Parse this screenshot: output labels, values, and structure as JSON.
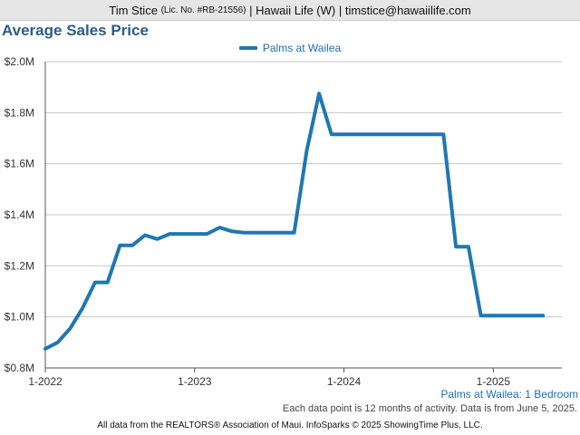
{
  "header": {
    "agent_name": "Tim Stice",
    "license": "(Lic. No. #RB-21556)",
    "company_email": "| Hawaii Life (W) | timstice@hawaiilife.com"
  },
  "colors": {
    "series": "#1f77b4",
    "title": "#2b5c8a",
    "header_bg": "#e6e6e6"
  },
  "chart_data": {
    "type": "line",
    "title": "Average Sales Price",
    "series": [
      {
        "name": "Palms at Wailea",
        "x": [
          "2022-01",
          "2022-02",
          "2022-03",
          "2022-04",
          "2022-05",
          "2022-06",
          "2022-07",
          "2022-08",
          "2022-09",
          "2022-10",
          "2022-11",
          "2022-12",
          "2023-01",
          "2023-02",
          "2023-03",
          "2023-04",
          "2023-05",
          "2023-06",
          "2023-07",
          "2023-08",
          "2023-09",
          "2023-10",
          "2023-11",
          "2023-12",
          "2024-01",
          "2024-02",
          "2024-03",
          "2024-04",
          "2024-05",
          "2024-06",
          "2024-07",
          "2024-08",
          "2024-09",
          "2024-10",
          "2024-11",
          "2024-12",
          "2025-01",
          "2025-02",
          "2025-03",
          "2025-04",
          "2025-05"
        ],
        "values": [
          875000,
          900000,
          955000,
          1035000,
          1135000,
          1135000,
          1280000,
          1280000,
          1320000,
          1305000,
          1325000,
          1325000,
          1325000,
          1325000,
          1350000,
          1335000,
          1330000,
          1330000,
          1330000,
          1330000,
          1330000,
          1650000,
          1875000,
          1715000,
          1715000,
          1715000,
          1715000,
          1715000,
          1715000,
          1715000,
          1715000,
          1715000,
          1715000,
          1275000,
          1275000,
          1005000,
          1005000,
          1005000,
          1005000,
          1005000,
          1005000
        ]
      }
    ],
    "y_ticks": [
      "$0.8M",
      "$1.0M",
      "$1.2M",
      "$1.4M",
      "$1.6M",
      "$1.8M",
      "$2.0M"
    ],
    "ylim": [
      800000,
      2000000
    ],
    "x_ticks": [
      "1-2022",
      "1-2023",
      "1-2024",
      "1-2025"
    ],
    "grid": "horizontal",
    "legend": "top-center"
  },
  "caption": "Palms at Wailea: 1 Bedroom",
  "note": "Each data point is 12 months of activity. Data is from June 5, 2025.",
  "footer": "All data from the REALTORS® Association of Maui. InfoSparks © 2025 ShowingTime Plus, LLC."
}
